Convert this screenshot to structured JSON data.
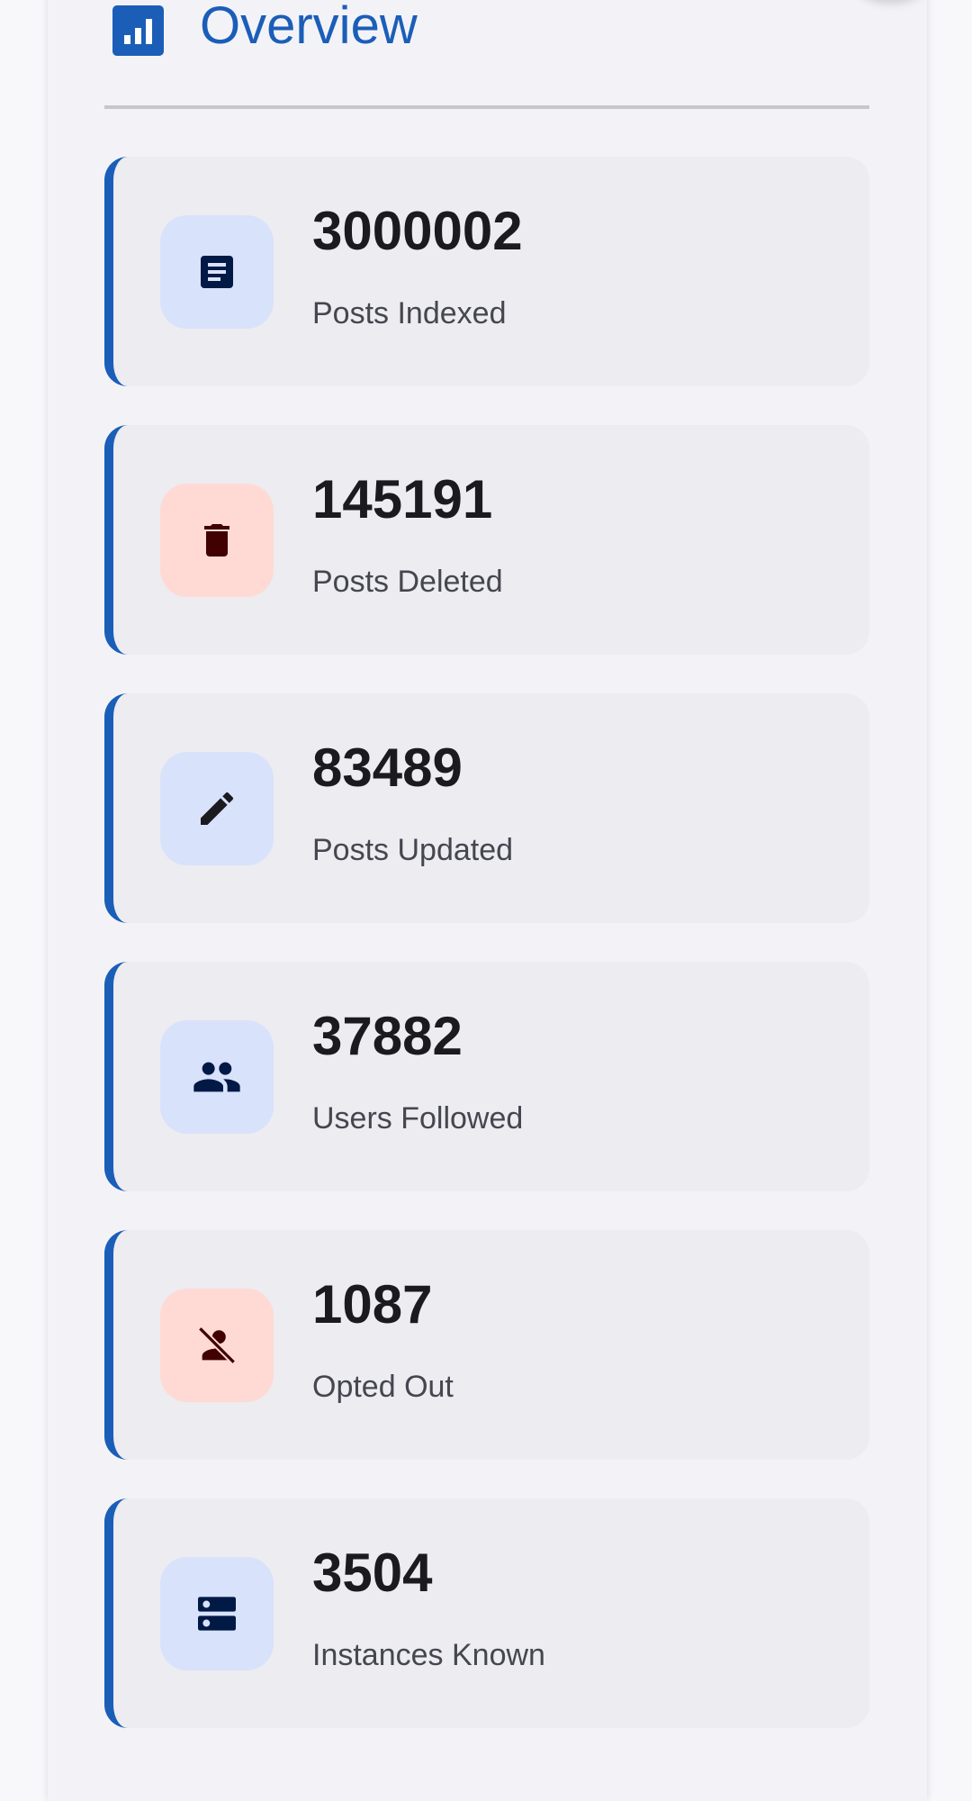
{
  "header": {
    "title": "Overview",
    "icon": "bar-chart-icon"
  },
  "colors": {
    "accent": "#1b5eb8",
    "info_bg": "#d9e2fb",
    "warn_bg": "#ffdad5",
    "info_fg": "#001945",
    "warn_fg": "#410002"
  },
  "stats": [
    {
      "value": "3000002",
      "label": "Posts Indexed",
      "icon": "article-icon",
      "tone": "blue"
    },
    {
      "value": "145191",
      "label": "Posts Deleted",
      "icon": "trash-icon",
      "tone": "red"
    },
    {
      "value": "83489",
      "label": "Posts Updated",
      "icon": "pencil-icon",
      "tone": "blue"
    },
    {
      "value": "37882",
      "label": "Users Followed",
      "icon": "group-icon",
      "tone": "blue"
    },
    {
      "value": "1087",
      "label": "Opted Out",
      "icon": "person-off-icon",
      "tone": "red"
    },
    {
      "value": "3504",
      "label": "Instances Known",
      "icon": "server-icon",
      "tone": "blue"
    }
  ]
}
